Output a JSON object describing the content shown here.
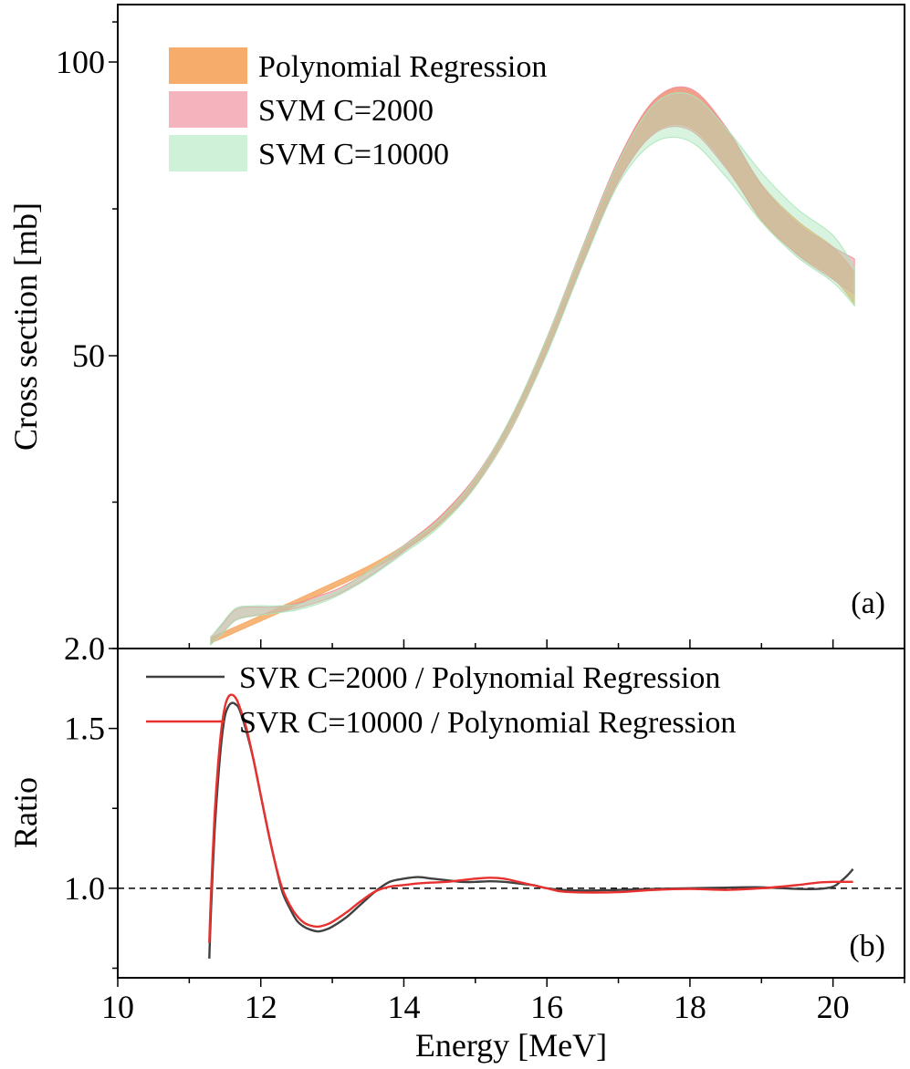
{
  "chart_data": [
    {
      "panel": "top",
      "type": "area",
      "panel_label": "(a)",
      "ylabel": "Cross section [mb]",
      "ytick_labels": [
        {
          "value": 2.0,
          "label": "2.0"
        },
        {
          "value": 50,
          "label": "50"
        },
        {
          "value": 100,
          "label": "100"
        }
      ],
      "ylim": [
        2.0,
        109
      ],
      "legend_location": "top-left",
      "colors": {
        "poly": "#F5A862",
        "svm2000": "#EE8C99",
        "svm10000": "#A8E5B8"
      },
      "series": [
        {
          "name": "Polynomial Regression",
          "kind": "band",
          "x": [
            11.3,
            11.5,
            12.0,
            12.5,
            13.0,
            13.5,
            14.0,
            14.5,
            15.0,
            15.5,
            16.0,
            16.5,
            17.0,
            17.5,
            18.0,
            18.5,
            19.0,
            19.5,
            20.0,
            20.3
          ],
          "upper": [
            3.8,
            4.8,
            7.4,
            10.0,
            12.7,
            15.5,
            18.9,
            23.5,
            30.1,
            39.8,
            53.0,
            68.5,
            83.3,
            93.5,
            95.3,
            88.8,
            79.2,
            73.0,
            68.5,
            64.3
          ],
          "lower": [
            2.9,
            3.9,
            6.5,
            9.1,
            11.8,
            14.6,
            18.0,
            22.3,
            28.6,
            37.9,
            50.4,
            65.6,
            79.7,
            88.0,
            88.8,
            82.3,
            73.0,
            67.3,
            63.2,
            58.8
          ]
        },
        {
          "name": "SVM C=2000",
          "kind": "band",
          "x": [
            11.3,
            11.45,
            11.65,
            11.9,
            12.2,
            12.5,
            12.8,
            13.1,
            13.5,
            14.0,
            14.5,
            15.0,
            15.5,
            16.0,
            16.5,
            17.0,
            17.5,
            18.0,
            18.5,
            19.0,
            19.5,
            20.0,
            20.3
          ],
          "upper": [
            3.9,
            5.8,
            8.4,
            8.8,
            8.8,
            9.4,
            10.6,
            11.9,
            14.6,
            18.9,
            23.6,
            30.2,
            39.9,
            53.1,
            68.6,
            83.4,
            93.5,
            95.5,
            89.0,
            79.0,
            72.5,
            68.5,
            66.5
          ],
          "lower": [
            2.7,
            4.4,
            6.7,
            7.4,
            7.9,
            8.6,
            9.6,
            11.0,
            13.7,
            17.9,
            22.5,
            28.6,
            37.9,
            50.5,
            65.8,
            79.7,
            87.8,
            88.4,
            82.0,
            73.3,
            67.2,
            63.0,
            60.5
          ]
        },
        {
          "name": "SVM C=10000",
          "kind": "band",
          "x": [
            11.3,
            11.45,
            11.65,
            11.9,
            12.2,
            12.5,
            12.8,
            13.1,
            13.5,
            14.0,
            14.5,
            15.0,
            15.5,
            16.0,
            16.5,
            17.0,
            17.5,
            18.0,
            18.5,
            19.0,
            19.5,
            20.0,
            20.3
          ],
          "upper": [
            3.8,
            6.0,
            8.6,
            9.0,
            9.0,
            9.2,
            10.2,
            11.6,
            14.6,
            18.8,
            23.2,
            30.0,
            40.0,
            53.0,
            68.4,
            83.0,
            92.8,
            94.5,
            88.8,
            81.2,
            75.0,
            70.5,
            65.0
          ],
          "lower": [
            2.6,
            4.3,
            6.6,
            7.3,
            7.8,
            8.3,
            9.3,
            10.8,
            13.5,
            17.6,
            22.0,
            28.5,
            38.0,
            50.3,
            65.4,
            79.2,
            86.3,
            86.5,
            80.5,
            72.8,
            66.8,
            62.5,
            58.5
          ]
        }
      ]
    },
    {
      "panel": "bottom",
      "type": "line",
      "panel_label": "(b)",
      "ylabel": "Ratio",
      "xlabel": "Energy [MeV]",
      "xlim": [
        10,
        21
      ],
      "ylim": [
        0.72,
        1.75
      ],
      "xticks": [
        10,
        12,
        14,
        16,
        18,
        20
      ],
      "xtick_labels": [
        "10",
        "12",
        "14",
        "16",
        "18",
        "20"
      ],
      "yticks": [
        1.0,
        1.5
      ],
      "ytick_labels": [
        "1.0",
        "1.5"
      ],
      "reference_line": 1.0,
      "legend_location": "top-left",
      "series": [
        {
          "name": "SVR C=2000 / Polynomial Regression",
          "color": "#404040",
          "x": [
            11.28,
            11.3,
            11.35,
            11.4,
            11.45,
            11.5,
            11.55,
            11.6,
            11.65,
            11.7,
            11.8,
            11.9,
            12.0,
            12.1,
            12.2,
            12.3,
            12.4,
            12.5,
            12.6,
            12.7,
            12.8,
            12.9,
            13.0,
            13.2,
            13.4,
            13.6,
            13.8,
            14.0,
            14.2,
            14.4,
            14.6,
            14.8,
            15.0,
            15.2,
            15.4,
            15.6,
            15.8,
            16.0,
            16.2,
            16.5,
            17.0,
            17.5,
            18.0,
            18.5,
            19.0,
            19.5,
            19.8,
            20.0,
            20.1,
            20.2,
            20.28
          ],
          "y": [
            0.78,
            0.91,
            1.16,
            1.33,
            1.46,
            1.54,
            1.57,
            1.58,
            1.575,
            1.56,
            1.49,
            1.4,
            1.29,
            1.18,
            1.08,
            0.99,
            0.94,
            0.9,
            0.88,
            0.87,
            0.865,
            0.87,
            0.88,
            0.91,
            0.95,
            0.99,
            1.02,
            1.03,
            1.035,
            1.03,
            1.025,
            1.02,
            1.02,
            1.022,
            1.02,
            1.015,
            1.01,
            1.0,
            0.995,
            0.993,
            0.995,
            0.998,
            1.0,
            1.002,
            1.003,
            0.998,
            0.998,
            1.005,
            1.02,
            1.04,
            1.06
          ]
        },
        {
          "name": "SVR C=10000 / Polynomial Regression",
          "color": "#E8312F",
          "x": [
            11.28,
            11.3,
            11.35,
            11.4,
            11.45,
            11.5,
            11.55,
            11.6,
            11.65,
            11.7,
            11.8,
            11.9,
            12.0,
            12.1,
            12.2,
            12.3,
            12.4,
            12.5,
            12.6,
            12.7,
            12.8,
            12.9,
            13.0,
            13.2,
            13.4,
            13.6,
            13.8,
            14.0,
            14.2,
            14.4,
            14.6,
            14.8,
            15.0,
            15.2,
            15.4,
            15.6,
            15.8,
            16.0,
            16.2,
            16.5,
            17.0,
            17.5,
            18.0,
            18.5,
            19.0,
            19.5,
            19.8,
            20.0,
            20.1,
            20.2,
            20.28
          ],
          "y": [
            0.83,
            0.96,
            1.21,
            1.38,
            1.5,
            1.57,
            1.6,
            1.605,
            1.595,
            1.57,
            1.5,
            1.4,
            1.29,
            1.18,
            1.08,
            1.0,
            0.95,
            0.915,
            0.893,
            0.883,
            0.88,
            0.885,
            0.895,
            0.925,
            0.96,
            0.99,
            1.005,
            1.01,
            1.015,
            1.018,
            1.02,
            1.025,
            1.03,
            1.033,
            1.03,
            1.02,
            1.01,
            1.0,
            0.99,
            0.987,
            0.988,
            0.995,
            0.998,
            0.995,
            1.0,
            1.01,
            1.018,
            1.02,
            1.02,
            1.02,
            1.02
          ]
        }
      ]
    }
  ]
}
